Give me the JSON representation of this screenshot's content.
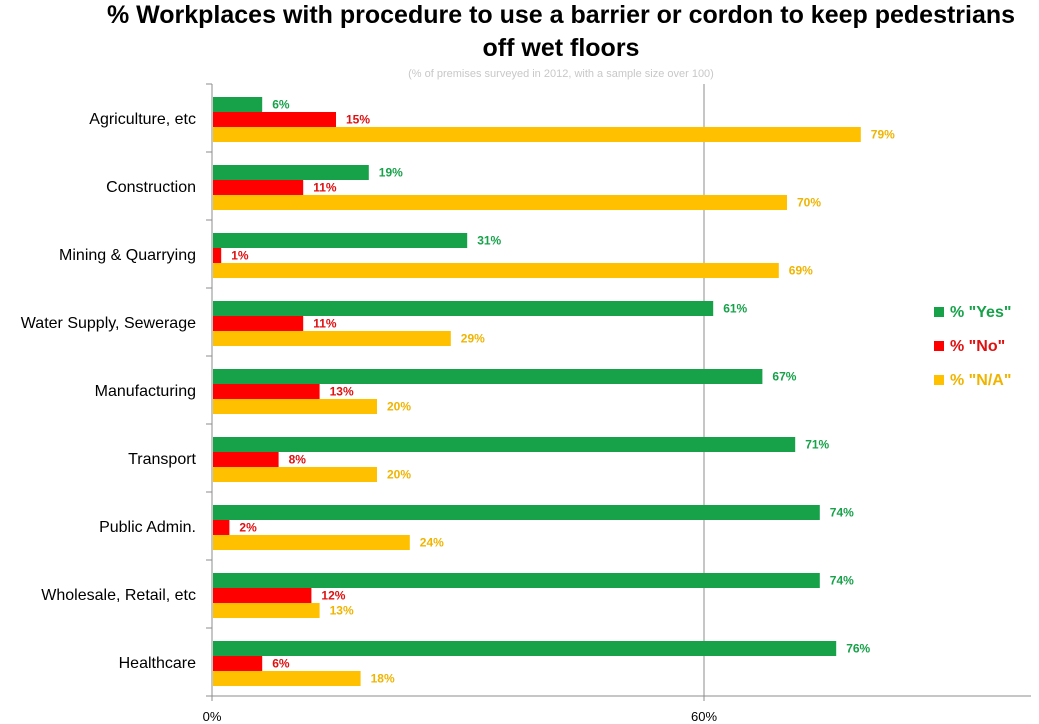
{
  "chart_data": {
    "type": "bar",
    "orientation": "horizontal",
    "title": "% Workplaces with procedure to use a barrier or cordon to keep pedestrians off wet floors",
    "title_lines": [
      "% Workplaces with procedure to use a barrier or cordon to keep pedestrians",
      "off wet floors"
    ],
    "subtitle": "(% of premises surveyed in 2012, with a sample size over 100)",
    "categories": [
      "Agriculture, etc",
      "Construction",
      "Mining & Quarrying",
      "Water Supply, Sewerage",
      "Manufacturing",
      "Transport",
      "Public Admin.",
      "Wholesale, Retail, etc",
      "Healthcare"
    ],
    "series": [
      {
        "name": "% \"Yes\"",
        "color": "#17a24a",
        "values": [
          6,
          19,
          31,
          61,
          67,
          71,
          74,
          74,
          76
        ]
      },
      {
        "name": "% \"No\"",
        "color": "#ff0000",
        "values": [
          15,
          11,
          1,
          11,
          13,
          8,
          2,
          12,
          6
        ]
      },
      {
        "name": "% \"N/A\"",
        "color": "#ffc000",
        "values": [
          79,
          70,
          69,
          29,
          20,
          20,
          24,
          13,
          18
        ]
      }
    ],
    "label_colors": {
      "% \"Yes\"": "#17a24a",
      "% \"No\"": "#e01010",
      "% \"N/A\"": "#f0b400"
    },
    "x_ticks": [
      {
        "value": 0,
        "label": "0%"
      },
      {
        "value": 60,
        "label": "60%"
      }
    ],
    "xlim": [
      0,
      100
    ],
    "value_suffix": "%",
    "gridlines": [
      60
    ],
    "legend_position": "right",
    "grid": true
  }
}
